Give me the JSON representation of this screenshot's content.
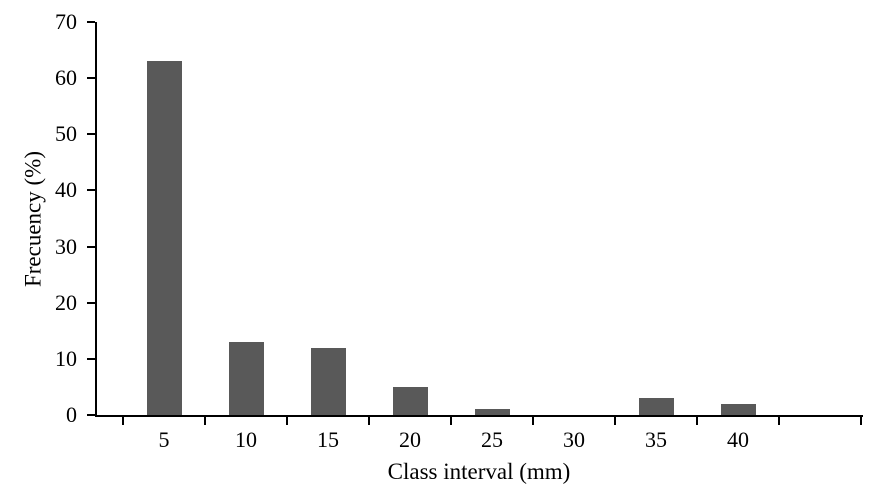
{
  "chart_data": {
    "type": "bar",
    "title": "",
    "xlabel": "Class interval (mm)",
    "ylabel": "Frecuency (%)",
    "categories": [
      "5",
      "10",
      "15",
      "20",
      "25",
      "30",
      "35",
      "40"
    ],
    "values": [
      63,
      13,
      12,
      5,
      1,
      0,
      3,
      2
    ],
    "ylim": [
      0,
      70
    ],
    "yticks": [
      0,
      10,
      20,
      30,
      40,
      50,
      60,
      70
    ],
    "grid": false,
    "legend_position": "none",
    "bar_color": "#595959",
    "axis_color": "#000000",
    "background_color": "#ffffff"
  }
}
